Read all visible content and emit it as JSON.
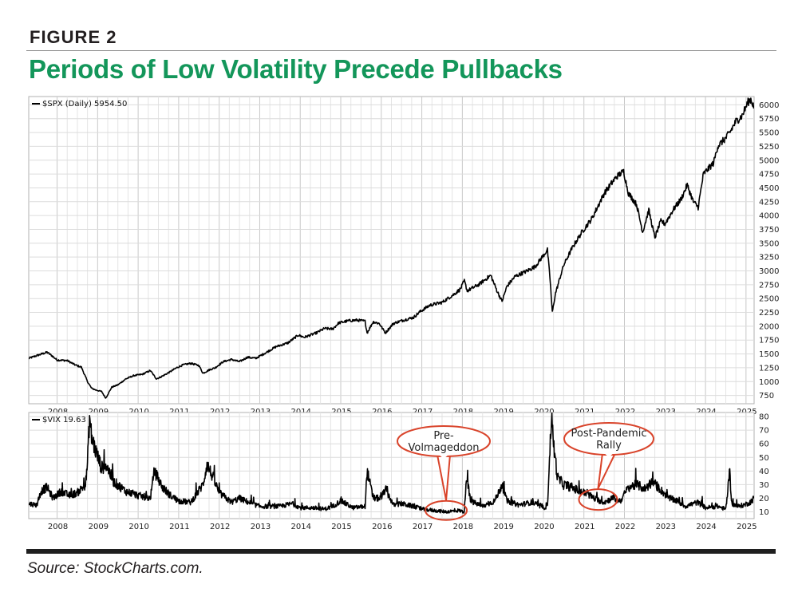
{
  "header": {
    "figure_label": "FIGURE 2",
    "title": "Periods of Low Volatility Precede Pullbacks"
  },
  "footer": {
    "source": "Source: StockCharts.com."
  },
  "colors": {
    "title": "#13965a",
    "line": "#000000",
    "grid": "#d6d6d6",
    "callout_stroke": "#d9442b",
    "callout_fill": "#ffffff"
  },
  "chart_data": [
    {
      "type": "line",
      "legend_label": "$SPX (Daily) 5954.50",
      "x_tick_labels": [
        "2008",
        "2009",
        "2010",
        "2011",
        "2012",
        "2013",
        "2014",
        "2015",
        "2016",
        "2017",
        "2018",
        "2019",
        "2020",
        "2021",
        "2022",
        "2023",
        "2024",
        "2025"
      ],
      "y_tick_labels": [
        "6000",
        "5750",
        "5500",
        "5250",
        "5000",
        "4750",
        "4500",
        "4250",
        "4000",
        "3750",
        "3500",
        "3250",
        "3000",
        "2750",
        "2500",
        "2250",
        "2000",
        "1750",
        "1500",
        "1250",
        "1000",
        "750"
      ],
      "ylim": [
        600,
        6150
      ],
      "xlim": [
        2007.3,
        2025.2
      ],
      "grid": true,
      "series": [
        {
          "x": [
            2007.3,
            2007.5,
            2007.75,
            2007.85,
            2008.0,
            2008.25,
            2008.45,
            2008.6,
            2008.75,
            2008.85,
            2008.95,
            2009.1,
            2009.2,
            2009.35,
            2009.5,
            2009.7,
            2009.9,
            2010.1,
            2010.3,
            2010.45,
            2010.55,
            2010.75,
            2010.95,
            2011.1,
            2011.3,
            2011.5,
            2011.6,
            2011.75,
            2011.9,
            2012.1,
            2012.3,
            2012.5,
            2012.7,
            2012.9,
            2013.1,
            2013.4,
            2013.7,
            2013.95,
            2014.1,
            2014.4,
            2014.6,
            2014.8,
            2014.95,
            2015.2,
            2015.4,
            2015.6,
            2015.65,
            2015.8,
            2015.95,
            2016.1,
            2016.3,
            2016.5,
            2016.8,
            2016.95,
            2017.2,
            2017.5,
            2017.8,
            2017.95,
            2018.05,
            2018.12,
            2018.4,
            2018.7,
            2018.85,
            2018.98,
            2019.1,
            2019.3,
            2019.6,
            2019.8,
            2019.95,
            2020.1,
            2020.17,
            2020.22,
            2020.3,
            2020.5,
            2020.7,
            2020.95,
            2021.2,
            2021.5,
            2021.8,
            2021.98,
            2022.1,
            2022.3,
            2022.45,
            2022.6,
            2022.75,
            2022.9,
            2023.0,
            2023.2,
            2023.4,
            2023.55,
            2023.7,
            2023.82,
            2023.95,
            2024.2,
            2024.3,
            2024.5,
            2024.6,
            2024.75,
            2024.9,
            2025.05,
            2025.12,
            2025.2
          ],
          "y": [
            1420,
            1470,
            1530,
            1480,
            1390,
            1380,
            1300,
            1260,
            1000,
            880,
            850,
            820,
            700,
            900,
            940,
            1050,
            1110,
            1130,
            1200,
            1050,
            1080,
            1160,
            1250,
            1300,
            1330,
            1290,
            1150,
            1210,
            1250,
            1360,
            1400,
            1360,
            1440,
            1420,
            1500,
            1630,
            1700,
            1840,
            1800,
            1880,
            1960,
            1950,
            2060,
            2100,
            2110,
            2090,
            1880,
            2080,
            2050,
            1880,
            2050,
            2100,
            2160,
            2260,
            2380,
            2430,
            2580,
            2670,
            2820,
            2640,
            2750,
            2920,
            2650,
            2450,
            2720,
            2900,
            3000,
            3080,
            3230,
            3380,
            2800,
            2250,
            2600,
            3100,
            3400,
            3700,
            3950,
            4400,
            4700,
            4800,
            4400,
            4200,
            3700,
            4100,
            3600,
            3900,
            3850,
            4100,
            4300,
            4550,
            4250,
            4150,
            4750,
            4950,
            5250,
            5400,
            5500,
            5700,
            5800,
            6050,
            6100,
            5954
          ]
        }
      ]
    },
    {
      "type": "line",
      "legend_label": "$VIX 19.63",
      "x_tick_labels": [
        "2008",
        "2009",
        "2010",
        "2011",
        "2012",
        "2013",
        "2014",
        "2015",
        "2016",
        "2017",
        "2018",
        "2019",
        "2020",
        "2021",
        "2022",
        "2023",
        "2024",
        "2025"
      ],
      "y_tick_labels": [
        "80",
        "70",
        "60",
        "50",
        "40",
        "30",
        "20",
        "10"
      ],
      "ylim": [
        5,
        83
      ],
      "xlim": [
        2007.3,
        2025.2
      ],
      "grid": true,
      "series": [
        {
          "x": [
            2007.3,
            2007.5,
            2007.6,
            2007.75,
            2007.9,
            2008.1,
            2008.3,
            2008.5,
            2008.7,
            2008.75,
            2008.8,
            2008.85,
            2008.95,
            2009.1,
            2009.2,
            2009.4,
            2009.7,
            2010.0,
            2010.3,
            2010.4,
            2010.6,
            2010.8,
            2011.0,
            2011.3,
            2011.6,
            2011.7,
            2011.85,
            2012.0,
            2012.3,
            2012.5,
            2012.8,
            2013.0,
            2013.5,
            2013.8,
            2014.0,
            2014.3,
            2014.6,
            2014.8,
            2015.0,
            2015.3,
            2015.6,
            2015.65,
            2015.8,
            2016.0,
            2016.1,
            2016.3,
            2016.5,
            2016.8,
            2017.0,
            2017.3,
            2017.6,
            2017.9,
            2018.05,
            2018.1,
            2018.2,
            2018.5,
            2018.8,
            2018.98,
            2019.1,
            2019.4,
            2019.7,
            2020.0,
            2020.1,
            2020.2,
            2020.25,
            2020.35,
            2020.5,
            2020.7,
            2020.9,
            2021.1,
            2021.3,
            2021.5,
            2021.7,
            2021.9,
            2022.1,
            2022.3,
            2022.5,
            2022.7,
            2022.9,
            2023.1,
            2023.3,
            2023.5,
            2023.8,
            2024.0,
            2024.3,
            2024.5,
            2024.6,
            2024.65,
            2024.8,
            2024.95,
            2025.1,
            2025.2
          ],
          "y": [
            16,
            15,
            25,
            28,
            20,
            25,
            22,
            24,
            30,
            45,
            80,
            65,
            55,
            42,
            45,
            32,
            25,
            22,
            20,
            40,
            28,
            22,
            18,
            17,
            30,
            45,
            35,
            24,
            17,
            20,
            16,
            14,
            14,
            16,
            13,
            13,
            12,
            14,
            18,
            13,
            14,
            40,
            20,
            20,
            27,
            15,
            16,
            14,
            12,
            11,
            10,
            11,
            10,
            37,
            18,
            14,
            18,
            30,
            18,
            15,
            17,
            13,
            14,
            82,
            60,
            35,
            30,
            28,
            25,
            23,
            19,
            17,
            20,
            18,
            28,
            30,
            27,
            32,
            26,
            20,
            18,
            14,
            17,
            13,
            14,
            12,
            38,
            16,
            14,
            15,
            17,
            20
          ]
        }
      ]
    }
  ],
  "annotations": [
    {
      "label": "Pre-Volmageddon",
      "line1": "Pre-",
      "line2": "Volmageddon",
      "target_x": 2017.6,
      "target_y": 11
    },
    {
      "label": "Post-Pandemic Rally",
      "line1": "Post-Pandemic",
      "line2": "Rally",
      "target_x": 2021.35,
      "target_y": 19
    }
  ]
}
